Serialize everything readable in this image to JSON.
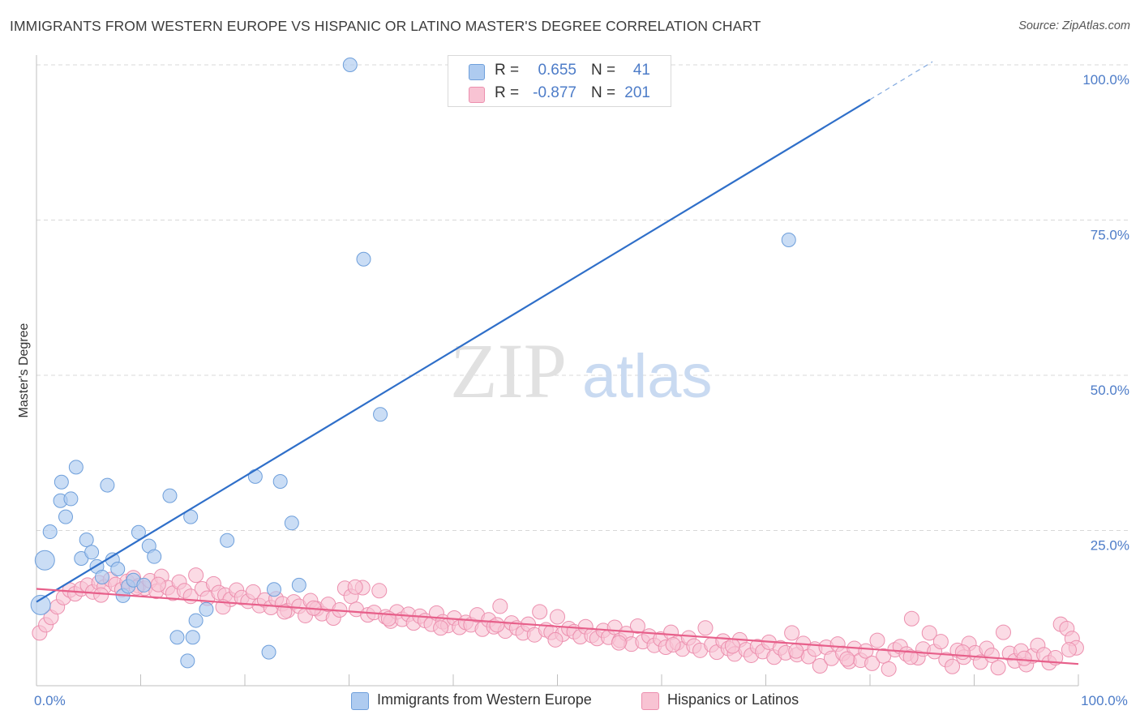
{
  "title": "IMMIGRANTS FROM WESTERN EUROPE VS HISPANIC OR LATINO MASTER'S DEGREE CORRELATION CHART",
  "source": "Source: ZipAtlas.com",
  "watermark": {
    "zip": "ZIP",
    "atlas": "atlas"
  },
  "colors": {
    "blue_fill": "#aecbf0",
    "blue_stroke": "#6e9fdb",
    "blue_line": "#2f6fc9",
    "pink_fill": "#f8c3d3",
    "pink_stroke": "#ec8fae",
    "pink_line": "#e75f8a",
    "tick_text": "#4d7cc8",
    "grid": "#d8d8d8"
  },
  "legend_top": [
    {
      "r_label": "R =",
      "r_value": "0.655",
      "n_label": "N =",
      "n_value": "41",
      "swatch": "blue"
    },
    {
      "r_label": "R =",
      "r_value": "-0.877",
      "n_label": "N =",
      "n_value": "201",
      "swatch": "pink"
    }
  ],
  "legend_bottom": [
    {
      "label": "Immigrants from Western Europe",
      "swatch": "blue"
    },
    {
      "label": "Hispanics or Latinos",
      "swatch": "pink"
    }
  ],
  "chart_data": {
    "type": "scatter",
    "title": "IMMIGRANTS FROM WESTERN EUROPE VS HISPANIC OR LATINO MASTER'S DEGREE CORRELATION CHART",
    "xlabel": "",
    "ylabel": "Master's Degree",
    "xlim": [
      0,
      100
    ],
    "ylim": [
      0,
      100
    ],
    "y_ticks": [
      {
        "value": 100,
        "label": "100.0%"
      },
      {
        "value": 75,
        "label": "75.0%"
      },
      {
        "value": 50,
        "label": "50.0%"
      },
      {
        "value": 25,
        "label": "25.0%"
      }
    ],
    "x_tick_labels": [
      {
        "value": 0,
        "label": "0.0%"
      },
      {
        "value": 100,
        "label": "100.0%"
      }
    ],
    "x_minor_ticks": [
      10,
      20,
      30,
      40,
      50,
      60,
      70,
      80,
      90,
      100
    ],
    "grid": true,
    "series": [
      {
        "name": "Immigrants from Western Europe",
        "color": "blue",
        "r": 0.655,
        "n": 41,
        "trend": {
          "x0": 0,
          "y0": 13.5,
          "x1": 80,
          "y1": 94.4,
          "dash_to_x": 86,
          "dash_to_y": 100.5
        },
        "points": [
          {
            "x": 0.4,
            "y": 13,
            "big": true
          },
          {
            "x": 0.8,
            "y": 20.2,
            "big": true
          },
          {
            "x": 1.3,
            "y": 24.8
          },
          {
            "x": 2.3,
            "y": 29.8
          },
          {
            "x": 2.4,
            "y": 32.8
          },
          {
            "x": 2.8,
            "y": 27.2
          },
          {
            "x": 3.3,
            "y": 30.1
          },
          {
            "x": 3.8,
            "y": 35.2
          },
          {
            "x": 4.3,
            "y": 20.5
          },
          {
            "x": 4.8,
            "y": 23.5
          },
          {
            "x": 5.3,
            "y": 21.5
          },
          {
            "x": 5.8,
            "y": 19.2
          },
          {
            "x": 6.3,
            "y": 17.5
          },
          {
            "x": 6.8,
            "y": 32.3
          },
          {
            "x": 7.3,
            "y": 20.3
          },
          {
            "x": 7.8,
            "y": 18.8
          },
          {
            "x": 8.3,
            "y": 14.5
          },
          {
            "x": 8.8,
            "y": 16
          },
          {
            "x": 9.3,
            "y": 17
          },
          {
            "x": 9.8,
            "y": 24.7
          },
          {
            "x": 10.3,
            "y": 16.2
          },
          {
            "x": 10.8,
            "y": 22.5
          },
          {
            "x": 11.3,
            "y": 20.8
          },
          {
            "x": 12.8,
            "y": 30.6
          },
          {
            "x": 13.5,
            "y": 7.8
          },
          {
            "x": 14.5,
            "y": 4
          },
          {
            "x": 14.8,
            "y": 27.2
          },
          {
            "x": 15.3,
            "y": 10.5
          },
          {
            "x": 16.3,
            "y": 12.3
          },
          {
            "x": 18.3,
            "y": 23.4
          },
          {
            "x": 21,
            "y": 33.7
          },
          {
            "x": 22.3,
            "y": 5.4
          },
          {
            "x": 22.8,
            "y": 15.5
          },
          {
            "x": 23.4,
            "y": 32.9
          },
          {
            "x": 24.5,
            "y": 26.2
          },
          {
            "x": 15,
            "y": 7.8
          },
          {
            "x": 30.1,
            "y": 100
          },
          {
            "x": 31.4,
            "y": 68.7
          },
          {
            "x": 33,
            "y": 43.7
          },
          {
            "x": 72.2,
            "y": 71.8
          },
          {
            "x": 25.2,
            "y": 16.2
          }
        ]
      },
      {
        "name": "Hispanics or Latinos",
        "color": "pink",
        "r": -0.877,
        "n": 201,
        "trend": {
          "x0": 0,
          "y0": 15.6,
          "x1": 100,
          "y1": 3.5
        },
        "points": [
          {
            "x": 0.3,
            "y": 8.5
          },
          {
            "x": 0.9,
            "y": 9.8
          },
          {
            "x": 1.4,
            "y": 11
          },
          {
            "x": 2,
            "y": 12.7
          },
          {
            "x": 2.6,
            "y": 14.2
          },
          {
            "x": 3.2,
            "y": 15.4
          },
          {
            "x": 3.7,
            "y": 14.8
          },
          {
            "x": 4.3,
            "y": 15.6
          },
          {
            "x": 4.9,
            "y": 16.2
          },
          {
            "x": 5.4,
            "y": 15.1
          },
          {
            "x": 6,
            "y": 16.6
          },
          {
            "x": 6.5,
            "y": 15.9
          },
          {
            "x": 7.1,
            "y": 17.1
          },
          {
            "x": 7.6,
            "y": 16.3
          },
          {
            "x": 8.2,
            "y": 15.5
          },
          {
            "x": 8.7,
            "y": 16.8
          },
          {
            "x": 9.3,
            "y": 17.4
          },
          {
            "x": 9.8,
            "y": 16.1
          },
          {
            "x": 10.4,
            "y": 15.7
          },
          {
            "x": 10.9,
            "y": 16.9
          },
          {
            "x": 11.5,
            "y": 15.2
          },
          {
            "x": 12,
            "y": 17.6
          },
          {
            "x": 12.6,
            "y": 15.8
          },
          {
            "x": 13.1,
            "y": 14.9
          },
          {
            "x": 13.7,
            "y": 16.7
          },
          {
            "x": 14.2,
            "y": 15.3
          },
          {
            "x": 14.8,
            "y": 14.4
          },
          {
            "x": 15.3,
            "y": 17.8
          },
          {
            "x": 15.9,
            "y": 15.6
          },
          {
            "x": 16.4,
            "y": 14.1
          },
          {
            "x": 17,
            "y": 16.4
          },
          {
            "x": 17.5,
            "y": 15
          },
          {
            "x": 18.1,
            "y": 14.6
          },
          {
            "x": 18.6,
            "y": 13.9
          },
          {
            "x": 19.2,
            "y": 15.4
          },
          {
            "x": 19.7,
            "y": 14.2
          },
          {
            "x": 20.3,
            "y": 13.6
          },
          {
            "x": 20.8,
            "y": 15.1
          },
          {
            "x": 21.4,
            "y": 12.9
          },
          {
            "x": 21.9,
            "y": 13.8
          },
          {
            "x": 22.5,
            "y": 12.6
          },
          {
            "x": 23,
            "y": 14
          },
          {
            "x": 23.6,
            "y": 13.2
          },
          {
            "x": 24.1,
            "y": 12.1
          },
          {
            "x": 24.7,
            "y": 13.5
          },
          {
            "x": 25.2,
            "y": 12.8
          },
          {
            "x": 25.8,
            "y": 11.3
          },
          {
            "x": 26.3,
            "y": 13.7
          },
          {
            "x": 26.9,
            "y": 12.4
          },
          {
            "x": 27.4,
            "y": 11.6
          },
          {
            "x": 28,
            "y": 13.1
          },
          {
            "x": 28.5,
            "y": 10.9
          },
          {
            "x": 29.1,
            "y": 12.2
          },
          {
            "x": 29.6,
            "y": 15.7
          },
          {
            "x": 30.2,
            "y": 14.4
          },
          {
            "x": 30.7,
            "y": 12.3
          },
          {
            "x": 31.3,
            "y": 15.8
          },
          {
            "x": 31.8,
            "y": 11.4
          },
          {
            "x": 32.4,
            "y": 11.8
          },
          {
            "x": 32.9,
            "y": 15.3
          },
          {
            "x": 33.5,
            "y": 11.1
          },
          {
            "x": 34,
            "y": 10.4
          },
          {
            "x": 34.6,
            "y": 11.9
          },
          {
            "x": 35.1,
            "y": 10.7
          },
          {
            "x": 35.7,
            "y": 11.5
          },
          {
            "x": 36.2,
            "y": 10.1
          },
          {
            "x": 36.8,
            "y": 11.2
          },
          {
            "x": 37.3,
            "y": 10.5
          },
          {
            "x": 37.9,
            "y": 9.9
          },
          {
            "x": 38.4,
            "y": 11.7
          },
          {
            "x": 39,
            "y": 10.3
          },
          {
            "x": 39.5,
            "y": 9.7
          },
          {
            "x": 40.1,
            "y": 10.9
          },
          {
            "x": 40.6,
            "y": 9.4
          },
          {
            "x": 41.2,
            "y": 10.2
          },
          {
            "x": 41.7,
            "y": 9.8
          },
          {
            "x": 42.3,
            "y": 11.4
          },
          {
            "x": 42.8,
            "y": 9.1
          },
          {
            "x": 43.4,
            "y": 10.6
          },
          {
            "x": 43.9,
            "y": 9.5
          },
          {
            "x": 44.5,
            "y": 12.8
          },
          {
            "x": 45,
            "y": 8.8
          },
          {
            "x": 45.6,
            "y": 10.1
          },
          {
            "x": 46.1,
            "y": 9.3
          },
          {
            "x": 46.7,
            "y": 8.5
          },
          {
            "x": 47.2,
            "y": 9.9
          },
          {
            "x": 47.8,
            "y": 8.2
          },
          {
            "x": 48.3,
            "y": 11.9
          },
          {
            "x": 48.9,
            "y": 9
          },
          {
            "x": 49.4,
            "y": 8.6
          },
          {
            "x": 50,
            "y": 11.1
          },
          {
            "x": 50.5,
            "y": 8.3
          },
          {
            "x": 51.1,
            "y": 9.2
          },
          {
            "x": 51.6,
            "y": 8.7
          },
          {
            "x": 52.2,
            "y": 7.9
          },
          {
            "x": 52.7,
            "y": 9.5
          },
          {
            "x": 53.3,
            "y": 8.1
          },
          {
            "x": 53.8,
            "y": 7.6
          },
          {
            "x": 54.4,
            "y": 8.9
          },
          {
            "x": 54.9,
            "y": 7.8
          },
          {
            "x": 55.5,
            "y": 9.4
          },
          {
            "x": 56,
            "y": 7.3
          },
          {
            "x": 56.6,
            "y": 8.4
          },
          {
            "x": 57.1,
            "y": 6.7
          },
          {
            "x": 57.7,
            "y": 9.6
          },
          {
            "x": 58.2,
            "y": 7.1
          },
          {
            "x": 58.8,
            "y": 8
          },
          {
            "x": 59.3,
            "y": 6.5
          },
          {
            "x": 59.9,
            "y": 7.5
          },
          {
            "x": 60.4,
            "y": 6.2
          },
          {
            "x": 60.9,
            "y": 8.6
          },
          {
            "x": 61.5,
            "y": 6.9
          },
          {
            "x": 62,
            "y": 5.9
          },
          {
            "x": 62.6,
            "y": 7.7
          },
          {
            "x": 63.1,
            "y": 6.4
          },
          {
            "x": 63.7,
            "y": 5.7
          },
          {
            "x": 64.2,
            "y": 9.3
          },
          {
            "x": 64.8,
            "y": 6.6
          },
          {
            "x": 65.3,
            "y": 5.4
          },
          {
            "x": 65.9,
            "y": 7.2
          },
          {
            "x": 66.4,
            "y": 6
          },
          {
            "x": 67,
            "y": 5.1
          },
          {
            "x": 67.5,
            "y": 7.4
          },
          {
            "x": 68.1,
            "y": 5.8
          },
          {
            "x": 68.6,
            "y": 4.9
          },
          {
            "x": 69.2,
            "y": 6.3
          },
          {
            "x": 69.7,
            "y": 5.5
          },
          {
            "x": 70.3,
            "y": 7
          },
          {
            "x": 70.8,
            "y": 4.6
          },
          {
            "x": 71.4,
            "y": 6.1
          },
          {
            "x": 71.9,
            "y": 5.3
          },
          {
            "x": 72.5,
            "y": 8.5
          },
          {
            "x": 73,
            "y": 5
          },
          {
            "x": 73.6,
            "y": 6.8
          },
          {
            "x": 74.1,
            "y": 4.7
          },
          {
            "x": 74.7,
            "y": 5.9
          },
          {
            "x": 75.2,
            "y": 3.2
          },
          {
            "x": 75.8,
            "y": 6.2
          },
          {
            "x": 76.3,
            "y": 4.4
          },
          {
            "x": 76.9,
            "y": 6.7
          },
          {
            "x": 77.4,
            "y": 5.2
          },
          {
            "x": 78,
            "y": 3.9
          },
          {
            "x": 78.5,
            "y": 6
          },
          {
            "x": 79.1,
            "y": 4.1
          },
          {
            "x": 79.6,
            "y": 5.6
          },
          {
            "x": 80.2,
            "y": 3.6
          },
          {
            "x": 80.7,
            "y": 7.3
          },
          {
            "x": 81.3,
            "y": 4.8
          },
          {
            "x": 81.8,
            "y": 2.7
          },
          {
            "x": 82.4,
            "y": 5.8
          },
          {
            "x": 82.9,
            "y": 6.3
          },
          {
            "x": 83.5,
            "y": 5.1
          },
          {
            "x": 84,
            "y": 10.8
          },
          {
            "x": 84.6,
            "y": 4.5
          },
          {
            "x": 85.1,
            "y": 5.9
          },
          {
            "x": 85.7,
            "y": 8.5
          },
          {
            "x": 86.2,
            "y": 5.5
          },
          {
            "x": 86.8,
            "y": 7.1
          },
          {
            "x": 87.3,
            "y": 4.2
          },
          {
            "x": 87.9,
            "y": 3.1
          },
          {
            "x": 88.4,
            "y": 5.7
          },
          {
            "x": 89,
            "y": 4.6
          },
          {
            "x": 89.5,
            "y": 6.8
          },
          {
            "x": 90.1,
            "y": 5.3
          },
          {
            "x": 90.6,
            "y": 3.8
          },
          {
            "x": 91.2,
            "y": 6
          },
          {
            "x": 91.7,
            "y": 4.9
          },
          {
            "x": 92.3,
            "y": 2.9
          },
          {
            "x": 92.8,
            "y": 8.6
          },
          {
            "x": 93.4,
            "y": 5.2
          },
          {
            "x": 93.9,
            "y": 4
          },
          {
            "x": 94.5,
            "y": 5.6
          },
          {
            "x": 95,
            "y": 3.4
          },
          {
            "x": 95.6,
            "y": 4.8
          },
          {
            "x": 96.1,
            "y": 6.5
          },
          {
            "x": 96.7,
            "y": 5
          },
          {
            "x": 97.2,
            "y": 3.7
          },
          {
            "x": 97.8,
            "y": 4.5
          },
          {
            "x": 98.3,
            "y": 9.9
          },
          {
            "x": 98.9,
            "y": 9.2
          },
          {
            "x": 99.4,
            "y": 7.6
          },
          {
            "x": 99.8,
            "y": 6.1
          },
          {
            "x": 6.2,
            "y": 14.6
          },
          {
            "x": 11.7,
            "y": 16.3
          },
          {
            "x": 17.9,
            "y": 12.7
          },
          {
            "x": 23.8,
            "y": 11.9
          },
          {
            "x": 26.6,
            "y": 12.5
          },
          {
            "x": 33.8,
            "y": 10.8
          },
          {
            "x": 38.8,
            "y": 9.3
          },
          {
            "x": 44.2,
            "y": 9.8
          },
          {
            "x": 49.8,
            "y": 7.4
          },
          {
            "x": 55.9,
            "y": 6.9
          },
          {
            "x": 61.1,
            "y": 6.6
          },
          {
            "x": 66.8,
            "y": 6.4
          },
          {
            "x": 72.9,
            "y": 5.6
          },
          {
            "x": 77.8,
            "y": 4.3
          },
          {
            "x": 83.9,
            "y": 4.6
          },
          {
            "x": 88.9,
            "y": 5.4
          },
          {
            "x": 94.8,
            "y": 4.4
          },
          {
            "x": 99.1,
            "y": 5.8
          },
          {
            "x": 9.6,
            "y": 15.8
          },
          {
            "x": 30.6,
            "y": 15.9
          }
        ]
      }
    ]
  }
}
